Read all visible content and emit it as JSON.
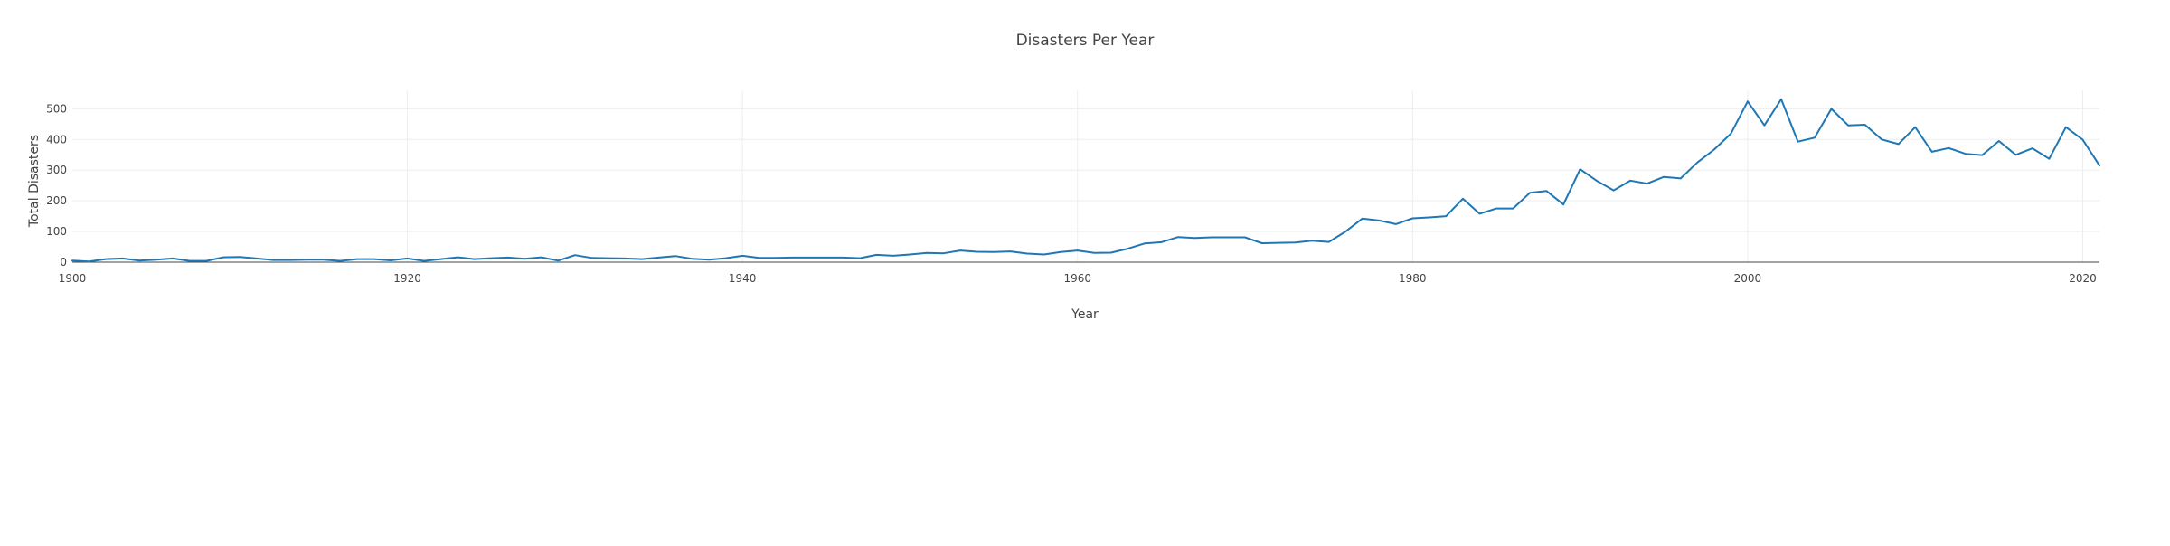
{
  "chart_data": {
    "type": "line",
    "title": "Disasters Per Year",
    "xlabel": "Year",
    "ylabel": "Total Disasters",
    "xlim": [
      1900,
      2021
    ],
    "ylim": [
      0,
      560
    ],
    "grid": true,
    "xticks": [
      1900,
      1920,
      1940,
      1960,
      1980,
      2000,
      2020
    ],
    "yticks": [
      0,
      100,
      200,
      300,
      400,
      500
    ],
    "series": [
      {
        "color": "#1f77b4",
        "x": [
          1900,
          1901,
          1902,
          1903,
          1904,
          1905,
          1906,
          1907,
          1908,
          1909,
          1910,
          1911,
          1912,
          1913,
          1914,
          1915,
          1916,
          1917,
          1918,
          1919,
          1920,
          1921,
          1922,
          1923,
          1924,
          1925,
          1926,
          1927,
          1928,
          1929,
          1930,
          1931,
          1932,
          1933,
          1934,
          1935,
          1936,
          1937,
          1938,
          1939,
          1940,
          1941,
          1942,
          1943,
          1944,
          1945,
          1946,
          1947,
          1948,
          1949,
          1950,
          1951,
          1952,
          1953,
          1954,
          1955,
          1956,
          1957,
          1958,
          1959,
          1960,
          1961,
          1962,
          1963,
          1964,
          1965,
          1966,
          1967,
          1968,
          1969,
          1970,
          1971,
          1972,
          1973,
          1974,
          1975,
          1976,
          1977,
          1978,
          1979,
          1980,
          1981,
          1982,
          1983,
          1984,
          1985,
          1986,
          1987,
          1988,
          1989,
          1990,
          1991,
          1992,
          1993,
          1994,
          1995,
          1996,
          1997,
          1998,
          1999,
          2000,
          2001,
          2002,
          2003,
          2004,
          2005,
          2006,
          2007,
          2008,
          2009,
          2010,
          2011,
          2012,
          2013,
          2014,
          2015,
          2016,
          2017,
          2018,
          2019,
          2020,
          2021
        ],
        "y": [
          5,
          2,
          10,
          12,
          5,
          8,
          12,
          4,
          4,
          16,
          17,
          12,
          7,
          7,
          8,
          8,
          4,
          10,
          10,
          6,
          12,
          4,
          10,
          16,
          10,
          13,
          15,
          11,
          16,
          5,
          23,
          14,
          13,
          12,
          10,
          15,
          20,
          11,
          8,
          13,
          21,
          14,
          14,
          15,
          15,
          15,
          15,
          13,
          24,
          21,
          25,
          30,
          29,
          38,
          34,
          33,
          35,
          28,
          25,
          33,
          38,
          30,
          31,
          44,
          61,
          65,
          82,
          79,
          81,
          81,
          81,
          62,
          63,
          64,
          70,
          66,
          100,
          142,
          136,
          124,
          143,
          146,
          150,
          207,
          158,
          175,
          175,
          226,
          232,
          188,
          303,
          265,
          234,
          266,
          256,
          278,
          273,
          325,
          367,
          419,
          524,
          446,
          531,
          393,
          406,
          500,
          446,
          448,
          400,
          385,
          440,
          360,
          372,
          353,
          349,
          395,
          350,
          371,
          337,
          440,
          399,
          315
        ]
      }
    ]
  }
}
